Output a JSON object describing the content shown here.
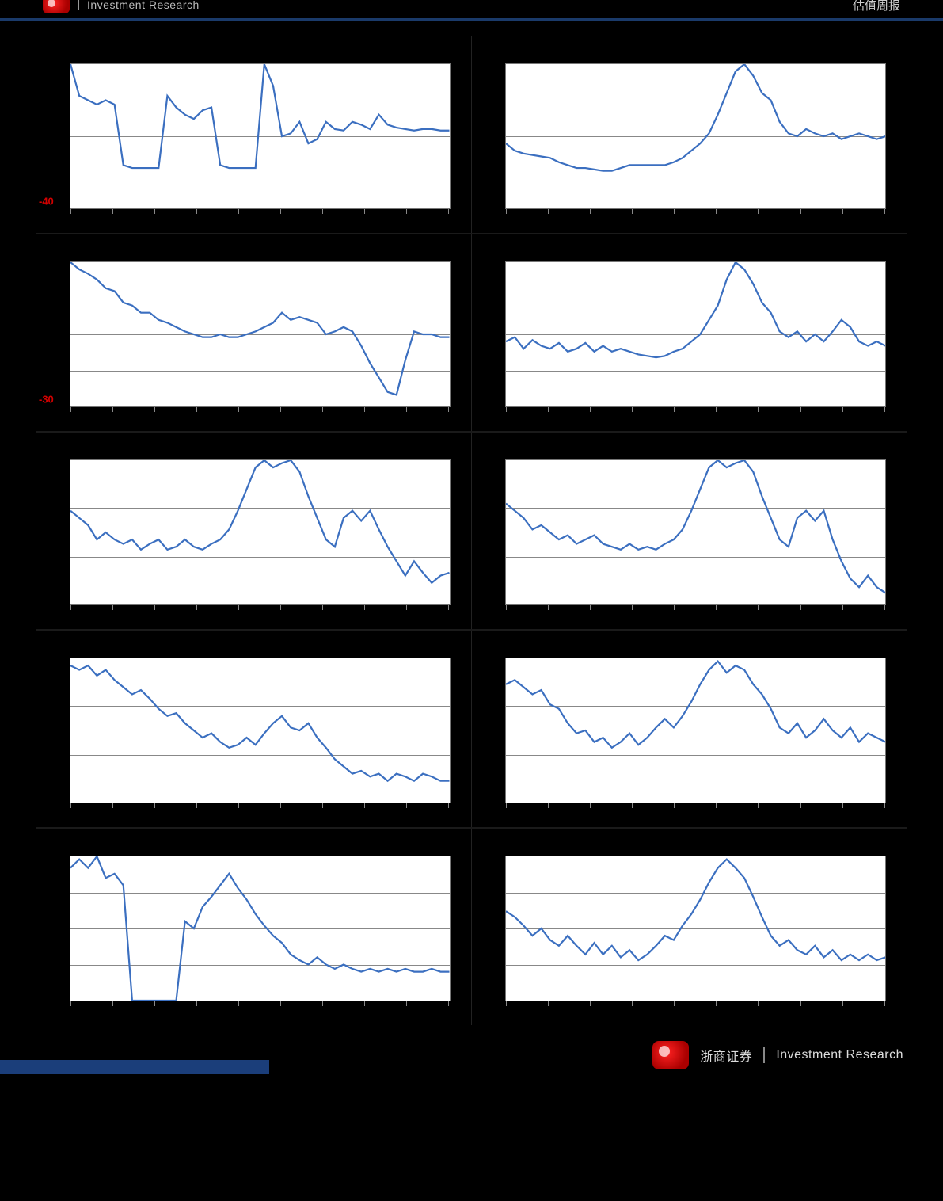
{
  "header": {
    "left_title": "Investment Research",
    "right_title": "估值周报"
  },
  "footer": {
    "company": "浙商证券",
    "tagline": "Investment Research"
  },
  "chart_common": {
    "line_color": "#3b6fc0",
    "background_color": "#ffffff",
    "gridline_color": "#888888",
    "frame_color": "#777777",
    "x_tick_count": 10,
    "ylabel_color_highlight": "#d40000",
    "ylabel_fontsize": 13
  },
  "charts": [
    {
      "id": "chart_0_0",
      "gridlines_pct": [
        25,
        50,
        75
      ],
      "ylabels": [
        {
          "text": "-40",
          "pos_pct": 95,
          "color": "#d40000"
        }
      ],
      "series": [
        0,
        22,
        25,
        28,
        25,
        28,
        70,
        72,
        72,
        72,
        72,
        22,
        30,
        35,
        38,
        32,
        30,
        70,
        72,
        72,
        72,
        72,
        0,
        15,
        50,
        48,
        40,
        55,
        52,
        40,
        45,
        46,
        40,
        42,
        45,
        35,
        42,
        44,
        45,
        46,
        45,
        45,
        46,
        46
      ]
    },
    {
      "id": "chart_0_1",
      "gridlines_pct": [
        25,
        50,
        75
      ],
      "ylabels": [],
      "series": [
        55,
        60,
        62,
        63,
        64,
        65,
        68,
        70,
        72,
        72,
        73,
        74,
        74,
        72,
        70,
        70,
        70,
        70,
        70,
        68,
        65,
        60,
        55,
        48,
        35,
        20,
        5,
        0,
        8,
        20,
        25,
        40,
        48,
        50,
        45,
        48,
        50,
        48,
        52,
        50,
        48,
        50,
        52,
        50
      ]
    },
    {
      "id": "chart_1_0",
      "gridlines_pct": [
        25,
        50,
        75
      ],
      "ylabels": [
        {
          "text": "-30",
          "pos_pct": 95,
          "color": "#d40000"
        }
      ],
      "series": [
        0,
        5,
        8,
        12,
        18,
        20,
        28,
        30,
        35,
        35,
        40,
        42,
        45,
        48,
        50,
        52,
        52,
        50,
        52,
        52,
        50,
        48,
        45,
        42,
        35,
        40,
        38,
        40,
        42,
        50,
        48,
        45,
        48,
        58,
        70,
        80,
        90,
        92,
        68,
        48,
        50,
        50,
        52,
        52
      ]
    },
    {
      "id": "chart_1_1",
      "gridlines_pct": [
        25,
        50,
        75
      ],
      "ylabels": [],
      "series": [
        55,
        52,
        60,
        54,
        58,
        60,
        56,
        62,
        60,
        56,
        62,
        58,
        62,
        60,
        62,
        64,
        65,
        66,
        65,
        62,
        60,
        55,
        50,
        40,
        30,
        12,
        0,
        5,
        15,
        28,
        35,
        48,
        52,
        48,
        55,
        50,
        55,
        48,
        40,
        45,
        55,
        58,
        55,
        58
      ]
    },
    {
      "id": "chart_2_0",
      "gridlines_pct": [
        33,
        67
      ],
      "ylabels": [],
      "series": [
        35,
        40,
        45,
        55,
        50,
        55,
        58,
        55,
        62,
        58,
        55,
        62,
        60,
        55,
        60,
        62,
        58,
        55,
        48,
        35,
        20,
        5,
        0,
        5,
        2,
        0,
        8,
        25,
        40,
        55,
        60,
        40,
        35,
        42,
        35,
        48,
        60,
        70,
        80,
        70,
        78,
        85,
        80,
        78
      ]
    },
    {
      "id": "chart_2_1",
      "gridlines_pct": [
        33,
        67
      ],
      "ylabels": [],
      "series": [
        30,
        35,
        40,
        48,
        45,
        50,
        55,
        52,
        58,
        55,
        52,
        58,
        60,
        62,
        58,
        62,
        60,
        62,
        58,
        55,
        48,
        35,
        20,
        5,
        0,
        5,
        2,
        0,
        8,
        25,
        40,
        55,
        60,
        40,
        35,
        42,
        35,
        55,
        70,
        82,
        88,
        80,
        88,
        92
      ]
    },
    {
      "id": "chart_3_0",
      "gridlines_pct": [
        33,
        67
      ],
      "ylabels": [],
      "series": [
        5,
        8,
        5,
        12,
        8,
        15,
        20,
        25,
        22,
        28,
        35,
        40,
        38,
        45,
        50,
        55,
        52,
        58,
        62,
        60,
        55,
        60,
        52,
        45,
        40,
        48,
        50,
        45,
        55,
        62,
        70,
        75,
        80,
        78,
        82,
        80,
        85,
        80,
        82,
        85,
        80,
        82,
        85,
        85
      ]
    },
    {
      "id": "chart_3_1",
      "gridlines_pct": [
        33,
        67
      ],
      "ylabels": [],
      "series": [
        18,
        15,
        20,
        25,
        22,
        32,
        35,
        45,
        52,
        50,
        58,
        55,
        62,
        58,
        52,
        60,
        55,
        48,
        42,
        48,
        40,
        30,
        18,
        8,
        2,
        10,
        5,
        8,
        18,
        25,
        35,
        48,
        52,
        45,
        55,
        50,
        42,
        50,
        55,
        48,
        58,
        52,
        55,
        58
      ]
    },
    {
      "id": "chart_4_0",
      "gridlines_pct": [
        25,
        50,
        75
      ],
      "ylabels": [],
      "series": [
        8,
        2,
        8,
        0,
        15,
        12,
        20,
        100,
        100,
        100,
        100,
        100,
        100,
        45,
        50,
        35,
        28,
        20,
        12,
        22,
        30,
        40,
        48,
        55,
        60,
        68,
        72,
        75,
        70,
        75,
        78,
        75,
        78,
        80,
        78,
        80,
        78,
        80,
        78,
        80,
        80,
        78,
        80,
        80
      ]
    },
    {
      "id": "chart_4_1",
      "gridlines_pct": [
        25,
        50,
        75
      ],
      "ylabels": [],
      "series": [
        38,
        42,
        48,
        55,
        50,
        58,
        62,
        55,
        62,
        68,
        60,
        68,
        62,
        70,
        65,
        72,
        68,
        62,
        55,
        58,
        48,
        40,
        30,
        18,
        8,
        2,
        8,
        15,
        28,
        42,
        55,
        62,
        58,
        65,
        68,
        62,
        70,
        65,
        72,
        68,
        72,
        68,
        72,
        70
      ]
    }
  ]
}
